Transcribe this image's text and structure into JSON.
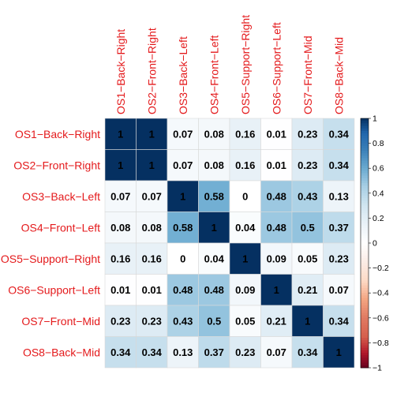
{
  "chart_data": {
    "type": "heatmap",
    "labels": [
      "OS1−Back−Right",
      "OS2−Front−Right",
      "OS3−Back−Left",
      "OS4−Front−Left",
      "OS5−Support−Right",
      "OS6−Support−Left",
      "OS7−Front−Mid",
      "OS8−Back−Mid"
    ],
    "matrix": [
      [
        1,
        1,
        0.07,
        0.08,
        0.16,
        0.01,
        0.23,
        0.34
      ],
      [
        1,
        1,
        0.07,
        0.08,
        0.16,
        0.01,
        0.23,
        0.34
      ],
      [
        0.07,
        0.07,
        1,
        0.58,
        0,
        0.48,
        0.43,
        0.13
      ],
      [
        0.08,
        0.08,
        0.58,
        1,
        0.04,
        0.48,
        0.5,
        0.37
      ],
      [
        0.16,
        0.16,
        0,
        0.04,
        1,
        0.09,
        0.05,
        0.23
      ],
      [
        0.01,
        0.01,
        0.48,
        0.48,
        0.09,
        1,
        0.21,
        0.07
      ],
      [
        0.23,
        0.23,
        0.43,
        0.5,
        0.05,
        0.21,
        1,
        0.34
      ],
      [
        0.34,
        0.34,
        0.13,
        0.37,
        0.23,
        0.07,
        0.34,
        1
      ]
    ],
    "value_labels": [
      [
        "1",
        "1",
        "0.07",
        "0.08",
        "0.16",
        "0.01",
        "0.23",
        "0.34"
      ],
      [
        "1",
        "1",
        "0.07",
        "0.08",
        "0.16",
        "0.01",
        "0.23",
        "0.34"
      ],
      [
        "0.07",
        "0.07",
        "1",
        "0.58",
        "0",
        "0.48",
        "0.43",
        "0.13"
      ],
      [
        "0.08",
        "0.08",
        "0.58",
        "1",
        "0.04",
        "0.48",
        "0.5",
        "0.37"
      ],
      [
        "0.16",
        "0.16",
        "0",
        "0.04",
        "1",
        "0.09",
        "0.05",
        "0.23"
      ],
      [
        "0.01",
        "0.01",
        "0.48",
        "0.48",
        "0.09",
        "1",
        "0.21",
        "0.07"
      ],
      [
        "0.23",
        "0.23",
        "0.43",
        "0.5",
        "0.05",
        "0.21",
        "1",
        "0.34"
      ],
      [
        "0.34",
        "0.34",
        "0.13",
        "0.37",
        "0.23",
        "0.07",
        "0.34",
        "1"
      ]
    ],
    "colorbar": {
      "range": [
        -1,
        1
      ],
      "tick_values": [
        1,
        0.8,
        0.6,
        0.4,
        0.2,
        0,
        -0.2,
        -0.4,
        -0.6,
        -0.8,
        -1
      ],
      "tick_labels": [
        "1",
        "0.8",
        "0.6",
        "0.4",
        "0.2",
        "0",
        "−0.2",
        "−0.4",
        "−0.6",
        "−0.8",
        "−1"
      ]
    },
    "colors": {
      "positive": "#053061",
      "zero": "#ffffff",
      "negative": "#67001f",
      "label_text": "#e41a1c",
      "grid": "#d9d9d9"
    }
  }
}
